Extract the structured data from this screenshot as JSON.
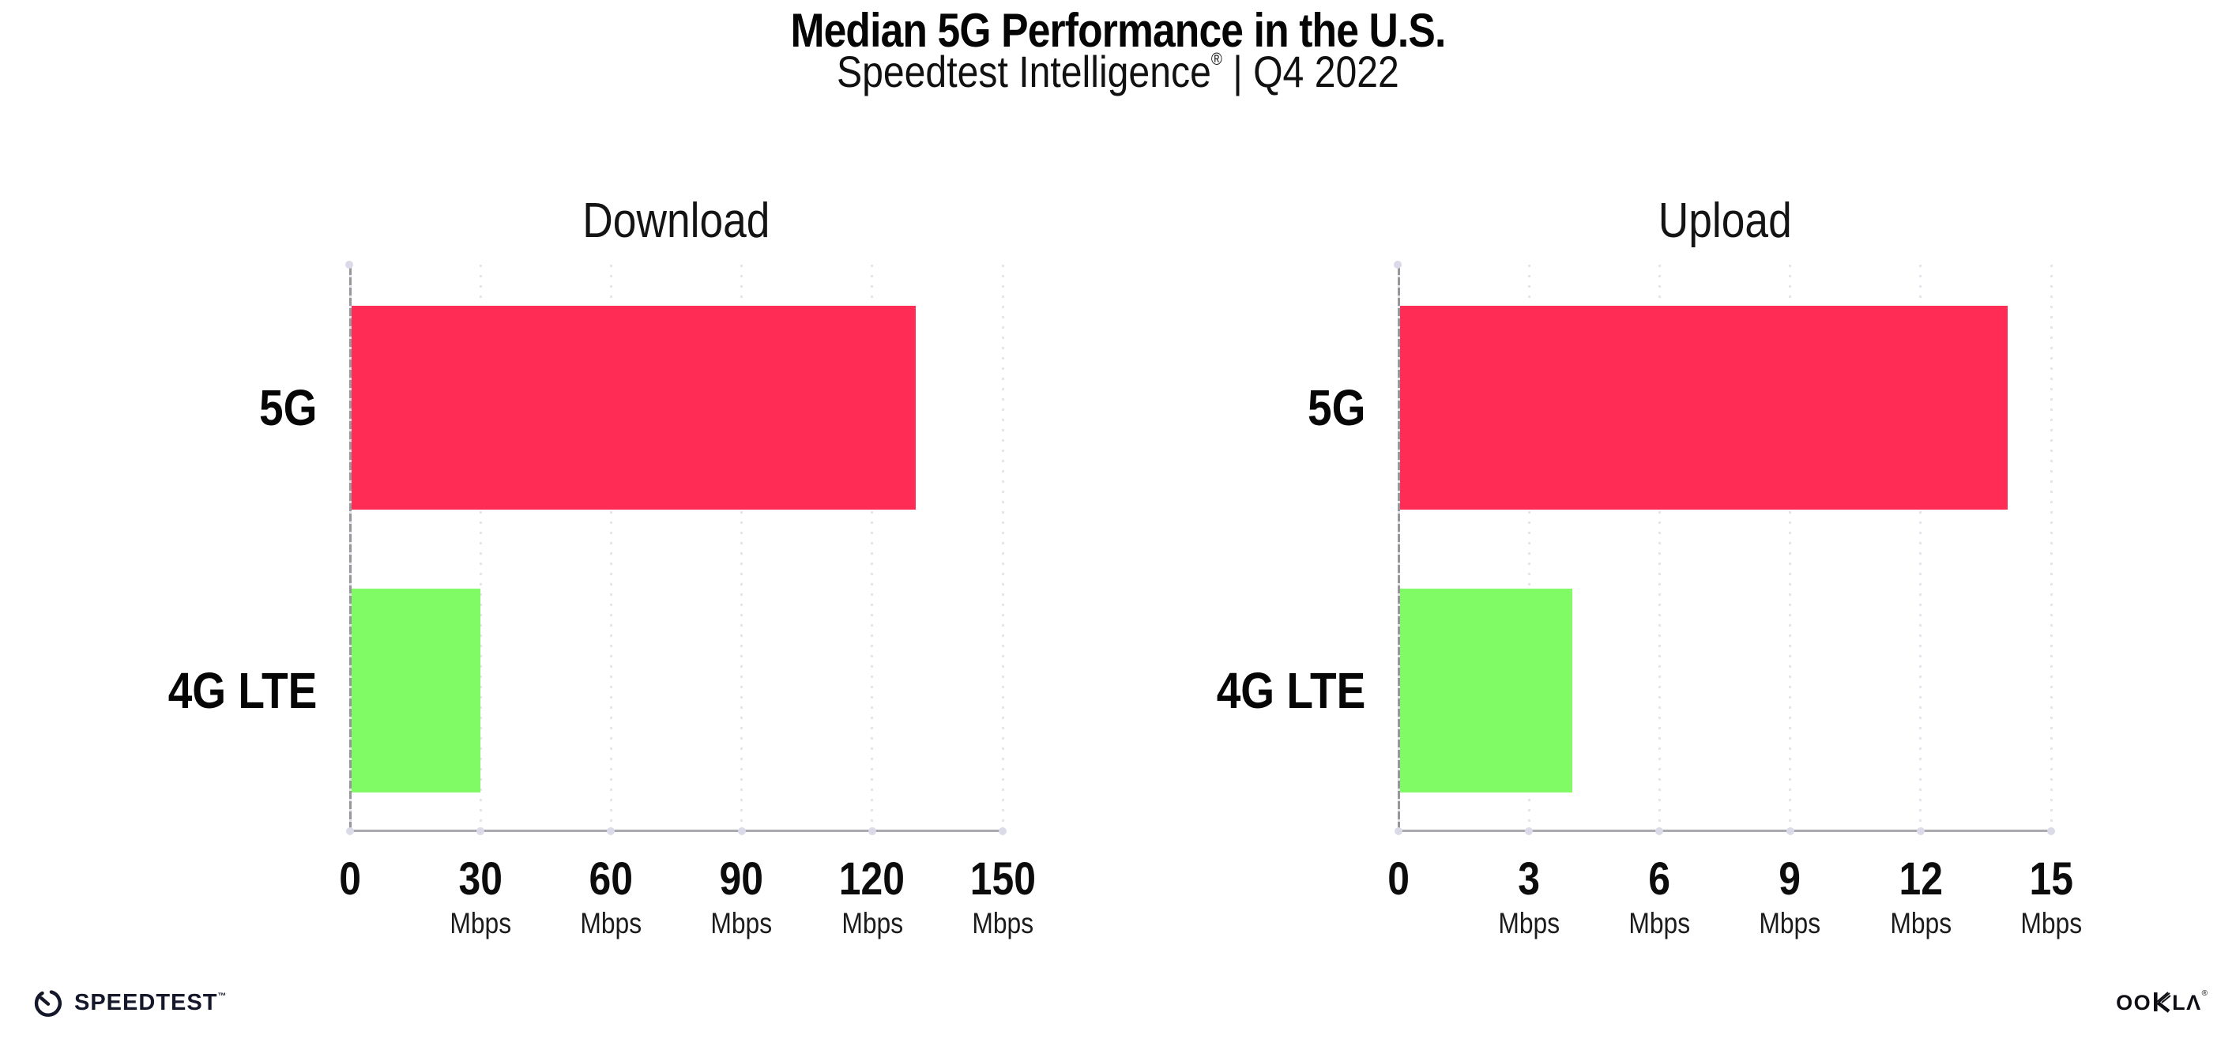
{
  "page": {
    "title": "Median 5G Performance in the U.S.",
    "subtitle": {
      "brand": "Speedtest Intelligence",
      "reg": "®",
      "rest": " | Q4 2022"
    },
    "background": "#ffffff"
  },
  "colors": {
    "bar_5g": "#ff2d56",
    "bar_4g_lte": "#80fb66",
    "axis_spine": "#96969b",
    "axis_baseline": "#a9a9ae",
    "gridline_dots": "#e4e4ef",
    "text": "#0b0b0b"
  },
  "chart_data": [
    {
      "type": "bar",
      "orientation": "horizontal",
      "title": "Download",
      "categories": [
        "5G",
        "4G LTE"
      ],
      "values": [
        130,
        30
      ],
      "unit": "Mbps",
      "xlim": [
        0,
        150
      ],
      "xticks": [
        0,
        30,
        60,
        90,
        120,
        150
      ],
      "tick_unit_label": "Mbps",
      "bar_colors": [
        "#ff2d56",
        "#80fb66"
      ],
      "grid": "dotted-vertical",
      "legend": "none"
    },
    {
      "type": "bar",
      "orientation": "horizontal",
      "title": "Upload",
      "categories": [
        "5G",
        "4G LTE"
      ],
      "values": [
        14,
        4
      ],
      "unit": "Mbps",
      "xlim": [
        0,
        15
      ],
      "xticks": [
        0,
        3,
        6,
        9,
        12,
        15
      ],
      "tick_unit_label": "Mbps",
      "bar_colors": [
        "#ff2d56",
        "#80fb66"
      ],
      "grid": "dotted-vertical",
      "legend": "none"
    }
  ],
  "footer": {
    "speedtest_label": "SPEEDTEST",
    "speedtest_tm": "™",
    "ookla_label_start": "OO",
    "ookla_label_end": "LΛ",
    "ookla_reg": "®"
  }
}
